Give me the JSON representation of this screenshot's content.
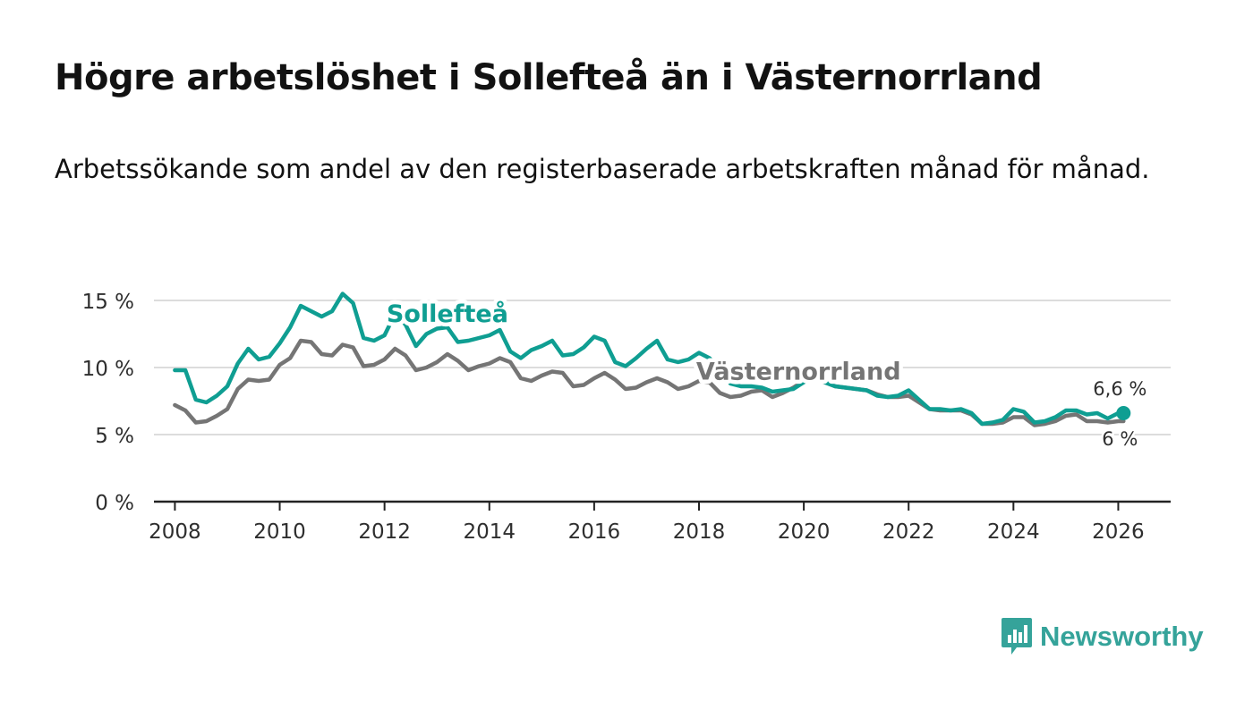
{
  "title": "Högre arbetslöshet i Sollefteå än i Västernorrland",
  "subtitle": "Arbetssökande som andel av den registerbaserade arbetskraften månad för månad.",
  "brand": {
    "name": "Newsworthy",
    "icon": "newsworthy-logo-icon",
    "color": "#35a39a"
  },
  "chart_data": {
    "type": "line",
    "title": "Högre arbetslöshet i Sollefteå än i Västernorrland",
    "xlabel": "",
    "ylabel": "",
    "xlim": [
      2007.6,
      2027.0
    ],
    "ylim": [
      0,
      15
    ],
    "grid": true,
    "y_ticks": [
      0,
      5,
      10,
      15
    ],
    "y_tick_labels": [
      "0 %",
      "5 %",
      "10 %",
      "15 %"
    ],
    "x_ticks": [
      2008,
      2010,
      2012,
      2014,
      2016,
      2018,
      2020,
      2022,
      2024,
      2026
    ],
    "x_tick_labels": [
      "2008",
      "2010",
      "2012",
      "2014",
      "2016",
      "2018",
      "2020",
      "2022",
      "2024",
      "2026"
    ],
    "series": [
      {
        "name": "Sollefteå",
        "color": "#0f9e92",
        "end_label": "6,6 %",
        "points": [
          [
            2008.0,
            9.8
          ],
          [
            2008.2,
            9.8
          ],
          [
            2008.4,
            7.6
          ],
          [
            2008.6,
            7.4
          ],
          [
            2008.8,
            7.9
          ],
          [
            2009.0,
            8.6
          ],
          [
            2009.2,
            10.3
          ],
          [
            2009.4,
            11.4
          ],
          [
            2009.6,
            10.6
          ],
          [
            2009.8,
            10.8
          ],
          [
            2010.0,
            11.8
          ],
          [
            2010.2,
            13.0
          ],
          [
            2010.4,
            14.6
          ],
          [
            2010.6,
            14.2
          ],
          [
            2010.8,
            13.8
          ],
          [
            2011.0,
            14.2
          ],
          [
            2011.2,
            15.5
          ],
          [
            2011.4,
            14.8
          ],
          [
            2011.6,
            12.2
          ],
          [
            2011.8,
            12.0
          ],
          [
            2012.0,
            12.4
          ],
          [
            2012.2,
            14.0
          ],
          [
            2012.4,
            13.2
          ],
          [
            2012.6,
            11.6
          ],
          [
            2012.8,
            12.5
          ],
          [
            2013.0,
            12.9
          ],
          [
            2013.2,
            13.0
          ],
          [
            2013.4,
            11.9
          ],
          [
            2013.6,
            12.0
          ],
          [
            2013.8,
            12.2
          ],
          [
            2014.0,
            12.4
          ],
          [
            2014.2,
            12.8
          ],
          [
            2014.4,
            11.2
          ],
          [
            2014.6,
            10.7
          ],
          [
            2014.8,
            11.3
          ],
          [
            2015.0,
            11.6
          ],
          [
            2015.2,
            12.0
          ],
          [
            2015.4,
            10.9
          ],
          [
            2015.6,
            11.0
          ],
          [
            2015.8,
            11.5
          ],
          [
            2016.0,
            12.3
          ],
          [
            2016.2,
            12.0
          ],
          [
            2016.4,
            10.4
          ],
          [
            2016.6,
            10.1
          ],
          [
            2016.8,
            10.7
          ],
          [
            2017.0,
            11.4
          ],
          [
            2017.2,
            12.0
          ],
          [
            2017.4,
            10.6
          ],
          [
            2017.6,
            10.4
          ],
          [
            2017.8,
            10.6
          ],
          [
            2018.0,
            11.1
          ],
          [
            2018.2,
            10.7
          ],
          [
            2018.4,
            9.9
          ],
          [
            2018.6,
            8.8
          ],
          [
            2018.8,
            8.6
          ],
          [
            2019.0,
            8.6
          ],
          [
            2019.2,
            8.5
          ],
          [
            2019.4,
            8.2
          ],
          [
            2019.6,
            8.3
          ],
          [
            2019.8,
            8.4
          ],
          [
            2020.0,
            8.9
          ],
          [
            2020.2,
            9.3
          ],
          [
            2020.4,
            8.9
          ],
          [
            2020.6,
            8.6
          ],
          [
            2020.8,
            8.5
          ],
          [
            2021.0,
            8.4
          ],
          [
            2021.2,
            8.3
          ],
          [
            2021.4,
            7.9
          ],
          [
            2021.6,
            7.8
          ],
          [
            2021.8,
            7.9
          ],
          [
            2022.0,
            8.3
          ],
          [
            2022.2,
            7.6
          ],
          [
            2022.4,
            6.9
          ],
          [
            2022.6,
            6.9
          ],
          [
            2022.8,
            6.8
          ],
          [
            2023.0,
            6.9
          ],
          [
            2023.2,
            6.6
          ],
          [
            2023.4,
            5.8
          ],
          [
            2023.6,
            5.9
          ],
          [
            2023.8,
            6.1
          ],
          [
            2024.0,
            6.9
          ],
          [
            2024.2,
            6.7
          ],
          [
            2024.4,
            5.9
          ],
          [
            2024.6,
            6.0
          ],
          [
            2024.8,
            6.3
          ],
          [
            2025.0,
            6.8
          ],
          [
            2025.2,
            6.8
          ],
          [
            2025.4,
            6.5
          ],
          [
            2025.6,
            6.6
          ],
          [
            2025.8,
            6.2
          ],
          [
            2026.0,
            6.6
          ],
          [
            2026.1,
            6.6
          ]
        ]
      },
      {
        "name": "Västernorrland",
        "color": "#757575",
        "end_label": "6 %",
        "points": [
          [
            2008.0,
            7.2
          ],
          [
            2008.2,
            6.8
          ],
          [
            2008.4,
            5.9
          ],
          [
            2008.6,
            6.0
          ],
          [
            2008.8,
            6.4
          ],
          [
            2009.0,
            6.9
          ],
          [
            2009.2,
            8.4
          ],
          [
            2009.4,
            9.1
          ],
          [
            2009.6,
            9.0
          ],
          [
            2009.8,
            9.1
          ],
          [
            2010.0,
            10.2
          ],
          [
            2010.2,
            10.7
          ],
          [
            2010.4,
            12.0
          ],
          [
            2010.6,
            11.9
          ],
          [
            2010.8,
            11.0
          ],
          [
            2011.0,
            10.9
          ],
          [
            2011.2,
            11.7
          ],
          [
            2011.4,
            11.5
          ],
          [
            2011.6,
            10.1
          ],
          [
            2011.8,
            10.2
          ],
          [
            2012.0,
            10.6
          ],
          [
            2012.2,
            11.4
          ],
          [
            2012.4,
            10.9
          ],
          [
            2012.6,
            9.8
          ],
          [
            2012.8,
            10.0
          ],
          [
            2013.0,
            10.4
          ],
          [
            2013.2,
            11.0
          ],
          [
            2013.4,
            10.5
          ],
          [
            2013.6,
            9.8
          ],
          [
            2013.8,
            10.1
          ],
          [
            2014.0,
            10.3
          ],
          [
            2014.2,
            10.7
          ],
          [
            2014.4,
            10.4
          ],
          [
            2014.6,
            9.2
          ],
          [
            2014.8,
            9.0
          ],
          [
            2015.0,
            9.4
          ],
          [
            2015.2,
            9.7
          ],
          [
            2015.4,
            9.6
          ],
          [
            2015.6,
            8.6
          ],
          [
            2015.8,
            8.7
          ],
          [
            2016.0,
            9.2
          ],
          [
            2016.2,
            9.6
          ],
          [
            2016.4,
            9.1
          ],
          [
            2016.6,
            8.4
          ],
          [
            2016.8,
            8.5
          ],
          [
            2017.0,
            8.9
          ],
          [
            2017.2,
            9.2
          ],
          [
            2017.4,
            8.9
          ],
          [
            2017.6,
            8.4
          ],
          [
            2017.8,
            8.6
          ],
          [
            2018.0,
            9.0
          ],
          [
            2018.2,
            8.9
          ],
          [
            2018.4,
            8.1
          ],
          [
            2018.6,
            7.8
          ],
          [
            2018.8,
            7.9
          ],
          [
            2019.0,
            8.2
          ],
          [
            2019.2,
            8.3
          ],
          [
            2019.4,
            7.8
          ],
          [
            2019.6,
            8.1
          ],
          [
            2019.8,
            8.5
          ],
          [
            2020.0,
            9.0
          ],
          [
            2020.2,
            9.2
          ],
          [
            2020.4,
            8.9
          ],
          [
            2020.6,
            8.6
          ],
          [
            2020.8,
            8.5
          ],
          [
            2021.0,
            8.4
          ],
          [
            2021.2,
            8.3
          ],
          [
            2021.4,
            8.0
          ],
          [
            2021.6,
            7.8
          ],
          [
            2021.8,
            7.8
          ],
          [
            2022.0,
            7.9
          ],
          [
            2022.2,
            7.4
          ],
          [
            2022.4,
            6.9
          ],
          [
            2022.6,
            6.8
          ],
          [
            2022.8,
            6.8
          ],
          [
            2023.0,
            6.8
          ],
          [
            2023.2,
            6.5
          ],
          [
            2023.4,
            5.8
          ],
          [
            2023.6,
            5.8
          ],
          [
            2023.8,
            5.9
          ],
          [
            2024.0,
            6.3
          ],
          [
            2024.2,
            6.3
          ],
          [
            2024.4,
            5.7
          ],
          [
            2024.6,
            5.8
          ],
          [
            2024.8,
            6.0
          ],
          [
            2025.0,
            6.4
          ],
          [
            2025.2,
            6.5
          ],
          [
            2025.4,
            6.0
          ],
          [
            2025.6,
            6.0
          ],
          [
            2025.8,
            5.9
          ],
          [
            2026.0,
            6.0
          ],
          [
            2026.1,
            6.0
          ]
        ]
      }
    ],
    "annotations": [
      {
        "text": "Sollefteå",
        "series": "Sollefteå",
        "x": 2013.2,
        "y": 13.4
      },
      {
        "text": "Västernorrland",
        "series": "Västernorrland",
        "x": 2019.9,
        "y": 9.1
      }
    ]
  }
}
